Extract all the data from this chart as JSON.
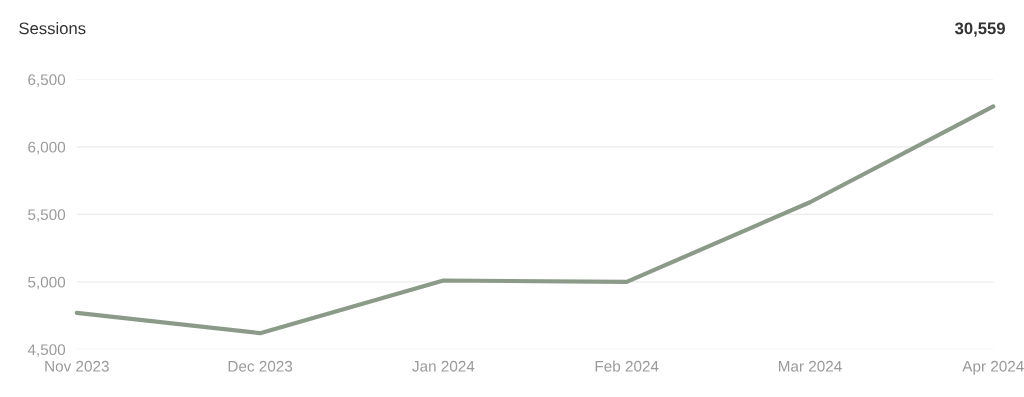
{
  "chart_data": {
    "type": "line",
    "title": "Sessions",
    "annotations": [
      "30,559"
    ],
    "categories": [
      "Nov 2023",
      "Dec 2023",
      "Jan 2024",
      "Feb 2024",
      "Mar 2024",
      "Apr 2024"
    ],
    "series": [
      {
        "color": "#8c9a8a",
        "values": [
          4770,
          4620,
          5010,
          5000,
          5590,
          6300
        ]
      }
    ],
    "ylim": [
      4500,
      6500
    ],
    "yticks": [
      {
        "value": 4500,
        "label": "4,500"
      },
      {
        "value": 5000,
        "label": "5,000"
      },
      {
        "value": 5500,
        "label": "5,500"
      },
      {
        "value": 6000,
        "label": "6,000"
      },
      {
        "value": 6500,
        "label": "6,500"
      }
    ],
    "grid": "y",
    "marker": "none",
    "line_style": "solid"
  }
}
